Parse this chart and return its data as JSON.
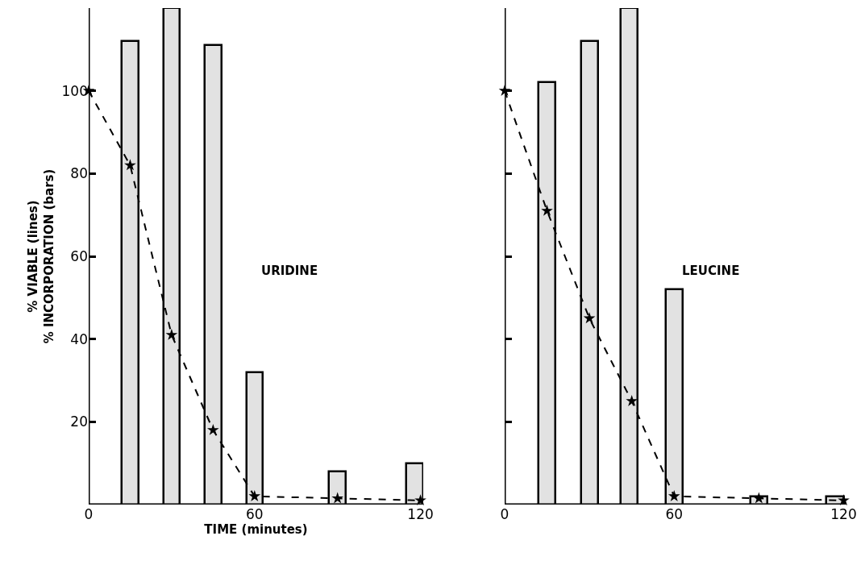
{
  "chart_data": [
    {
      "type": "bar",
      "x": [
        15,
        30,
        45,
        60,
        90,
        118
      ],
      "xlabel": "TIME (minutes)",
      "ylabel": "% VIABLE (lines)\n% INCORPORATION (bars)",
      "annotations": [
        "URIDINE"
      ],
      "series": [
        {
          "color": "#e2e2e2",
          "values": [
            112,
            120,
            111,
            32,
            8,
            10
          ]
        },
        {
          "type": "line",
          "color": "#000000",
          "x": [
            0,
            15,
            30,
            45,
            60,
            90,
            120
          ],
          "values": [
            100,
            82,
            41,
            18,
            2,
            1.5,
            1
          ],
          "marker": "star",
          "line_style": "dashed"
        }
      ],
      "xlim": [
        0,
        121
      ],
      "xticks": [
        0,
        60,
        120
      ],
      "ylim": [
        0,
        120
      ],
      "yticks": [
        20,
        40,
        60,
        80,
        100
      ],
      "grid": false
    },
    {
      "type": "bar",
      "x": [
        15,
        30,
        44,
        60,
        90,
        117
      ],
      "annotations": [
        "LEUCINE"
      ],
      "series": [
        {
          "color": "#e2e2e2",
          "values": [
            102,
            112,
            120,
            52,
            2,
            2
          ]
        },
        {
          "type": "line",
          "color": "#000000",
          "x": [
            0,
            15,
            30,
            45,
            60,
            90,
            120
          ],
          "values": [
            100,
            71,
            45,
            25,
            2,
            1.5,
            1
          ],
          "marker": "star",
          "line_style": "dashed"
        }
      ],
      "xlim": [
        0,
        121
      ],
      "xticks": [
        0,
        60,
        120
      ],
      "ylim": [
        0,
        120
      ],
      "yticks": [
        {
          "value": 20,
          "label": null
        },
        {
          "value": 40,
          "label": null
        },
        {
          "value": 60,
          "label": null
        },
        {
          "value": 80,
          "label": null
        },
        {
          "value": 100,
          "label": null
        }
      ],
      "tick_labels": "x",
      "grid": false
    }
  ]
}
